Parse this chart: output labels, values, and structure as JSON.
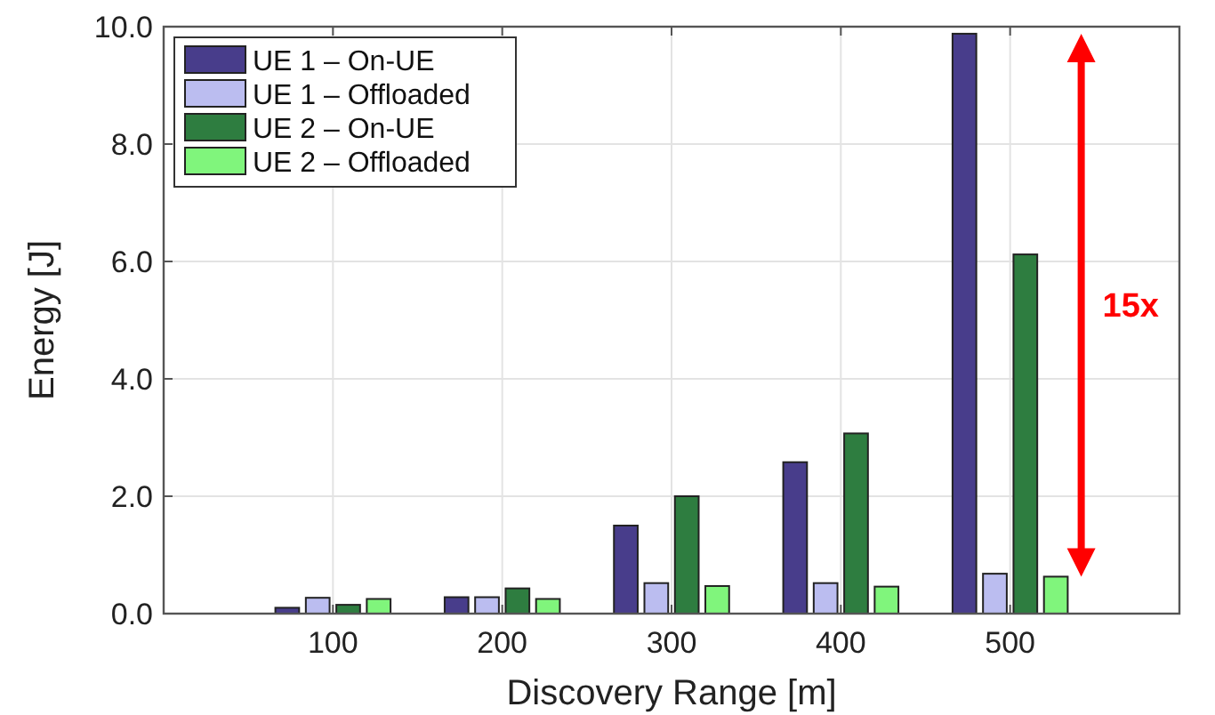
{
  "chart_data": {
    "type": "bar",
    "xlabel": "Discovery Range [m]",
    "ylabel": "Energy [J]",
    "x": [
      100,
      200,
      300,
      400,
      500
    ],
    "xlim": [
      0,
      600
    ],
    "xticks": [
      100,
      200,
      300,
      400,
      500
    ],
    "ylim": [
      0,
      10
    ],
    "yticks": [
      {
        "value": 0,
        "label": "0.0"
      },
      {
        "value": 2,
        "label": "2.0"
      },
      {
        "value": 4,
        "label": "4.0"
      },
      {
        "value": 6,
        "label": "6.0"
      },
      {
        "value": 8,
        "label": "8.0"
      },
      {
        "value": 10,
        "label": "10.0"
      }
    ],
    "series": [
      {
        "name": "UE 1 – On-UE",
        "color": "#483d8b",
        "values": [
          0.1,
          0.28,
          1.5,
          2.58,
          9.88
        ]
      },
      {
        "name": "UE 1 – Offloaded",
        "color": "#bbbdf0",
        "values": [
          0.27,
          0.28,
          0.52,
          0.52,
          0.68
        ]
      },
      {
        "name": "UE 2 – On-UE",
        "color": "#2e7d40",
        "values": [
          0.15,
          0.43,
          2.0,
          3.07,
          6.12
        ]
      },
      {
        "name": "UE 2 – Offloaded",
        "color": "#80f57c",
        "values": [
          0.25,
          0.25,
          0.47,
          0.46,
          0.63
        ]
      }
    ],
    "annotations": [
      "15x"
    ],
    "grid": true,
    "legend": "top left"
  }
}
